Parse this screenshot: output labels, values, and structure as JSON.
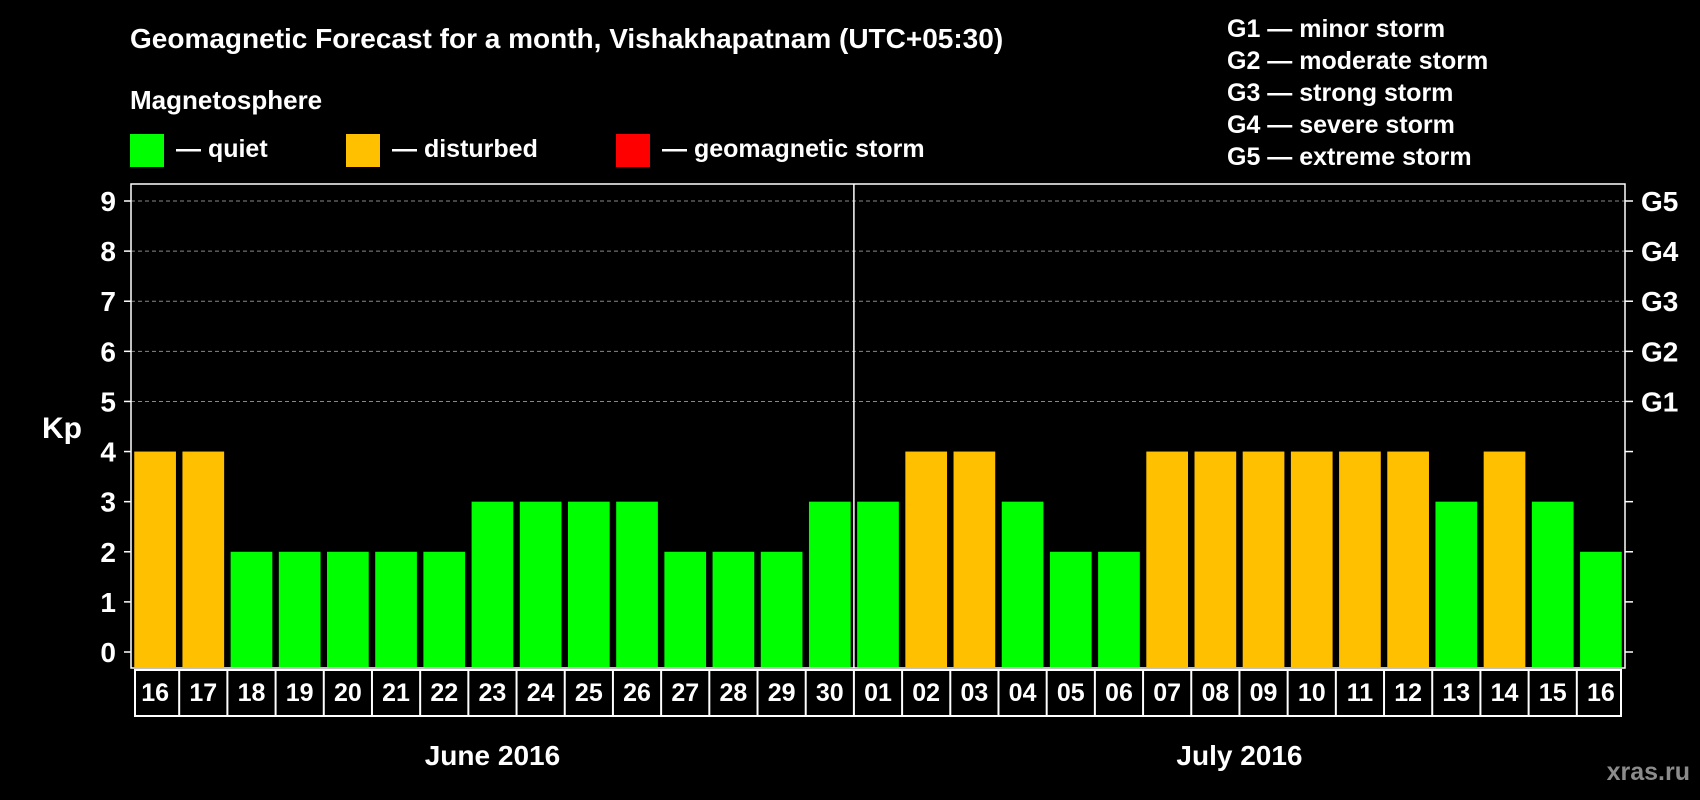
{
  "chart_data": {
    "type": "bar",
    "title": "Geomagnetic Forecast for a month, Vishakhapatnam (UTC+05:30)",
    "legend": {
      "heading": "Magnetosphere",
      "items": [
        {
          "label": "— quiet",
          "color": "#00ff00"
        },
        {
          "label": "— disturbed",
          "color": "#ffc000"
        },
        {
          "label": "— geomagnetic storm",
          "color": "#ff0000"
        }
      ]
    },
    "storm_scale": [
      "G1 — minor storm",
      "G2 — moderate storm",
      "G3 — strong storm",
      "G4 — severe storm",
      "G5 — extreme storm"
    ],
    "ylabel": "Kp",
    "ylim": [
      0,
      9
    ],
    "yticks": [
      "0",
      "1",
      "2",
      "3",
      "4",
      "5",
      "6",
      "7",
      "8",
      "9"
    ],
    "right_axis": [
      {
        "kp": 5,
        "label": "G1"
      },
      {
        "kp": 6,
        "label": "G2"
      },
      {
        "kp": 7,
        "label": "G3"
      },
      {
        "kp": 8,
        "label": "G4"
      },
      {
        "kp": 9,
        "label": "G5"
      }
    ],
    "categories": [
      "16",
      "17",
      "18",
      "19",
      "20",
      "21",
      "22",
      "23",
      "24",
      "25",
      "26",
      "27",
      "28",
      "29",
      "30",
      "01",
      "02",
      "03",
      "04",
      "05",
      "06",
      "07",
      "08",
      "09",
      "10",
      "11",
      "12",
      "13",
      "14",
      "15",
      "16"
    ],
    "values": [
      4,
      4,
      2,
      2,
      2,
      2,
      2,
      3,
      3,
      3,
      3,
      2,
      2,
      2,
      3,
      3,
      4,
      4,
      3,
      2,
      2,
      4,
      4,
      4,
      4,
      4,
      4,
      3,
      4,
      3,
      2
    ],
    "months": [
      {
        "label": "June 2016",
        "start": 0,
        "end": 14
      },
      {
        "label": "July 2016",
        "start": 15,
        "end": 30
      }
    ],
    "month_divider_after_index": 14,
    "thresholds": {
      "disturbed": 4,
      "storm": 5
    },
    "colors": {
      "quiet": "#00ff00",
      "disturbed": "#ffc000",
      "storm": "#ff0000",
      "grid": "#888888",
      "axis": "#ffffff",
      "watermark": "#8c8c8c"
    },
    "watermark": "xras.ru"
  }
}
